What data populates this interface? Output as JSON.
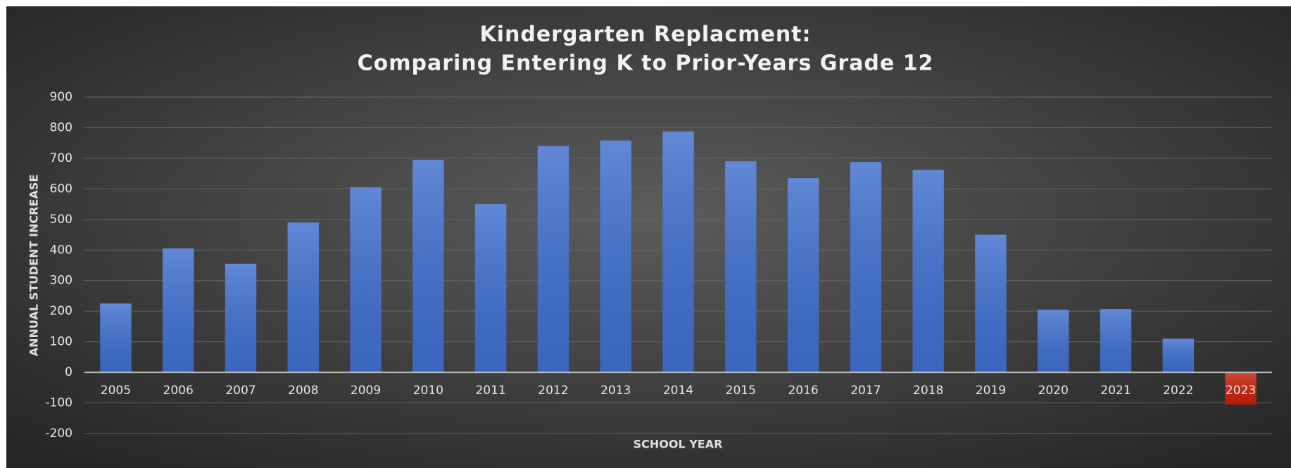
{
  "chart_data": {
    "type": "bar",
    "title": [
      "Kindergarten Replacment:",
      "Comparing Entering K to Prior-Years Grade 12"
    ],
    "x_label": "SCHOOL YEAR",
    "y_label": "ANNUAL STUDENT INCREASE",
    "categories": [
      "2005",
      "2006",
      "2007",
      "2008",
      "2009",
      "2010",
      "2011",
      "2012",
      "2013",
      "2014",
      "2015",
      "2016",
      "2017",
      "2018",
      "2019",
      "2020",
      "2021",
      "2022",
      "2023"
    ],
    "values": [
      225,
      405,
      355,
      490,
      605,
      695,
      550,
      740,
      758,
      788,
      690,
      635,
      688,
      662,
      450,
      205,
      207,
      110,
      -105
    ],
    "colors": [
      "#3f6fcf",
      "#3f6fcf",
      "#3f6fcf",
      "#3f6fcf",
      "#3f6fcf",
      "#3f6fcf",
      "#3f6fcf",
      "#3f6fcf",
      "#3f6fcf",
      "#3f6fcf",
      "#3f6fcf",
      "#3f6fcf",
      "#3f6fcf",
      "#3f6fcf",
      "#3f6fcf",
      "#3f6fcf",
      "#3f6fcf",
      "#3f6fcf",
      "#c8200a"
    ],
    "ylim": [
      -200,
      900
    ],
    "yticks": [
      -200,
      -100,
      0,
      100,
      200,
      300,
      400,
      500,
      600,
      700,
      800,
      900
    ],
    "grid": true
  }
}
